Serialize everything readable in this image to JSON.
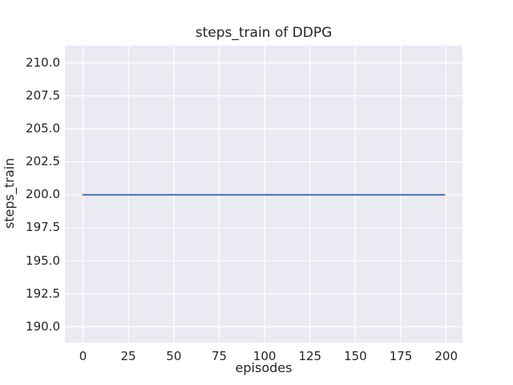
{
  "chart_data": {
    "type": "line",
    "title": "steps_train of DDPG",
    "xlabel": "episodes",
    "ylabel": "steps_train",
    "x_ticks": {
      "values": [
        0,
        25,
        50,
        75,
        100,
        125,
        150,
        175,
        200
      ],
      "labels": [
        "0",
        "25",
        "50",
        "75",
        "100",
        "125",
        "150",
        "175",
        "200"
      ]
    },
    "y_ticks": {
      "values": [
        190.0,
        192.5,
        195.0,
        197.5,
        200.0,
        202.5,
        205.0,
        207.5,
        210.0
      ],
      "labels": [
        "190.0",
        "192.5",
        "195.0",
        "197.5",
        "200.0",
        "202.5",
        "205.0",
        "207.5",
        "210.0"
      ]
    },
    "xlim": [
      -9.95,
      208.95
    ],
    "ylim": [
      188.8,
      211.3
    ],
    "grid": true,
    "legend_position": "none",
    "colors": {
      "figure_background": "#ffffff",
      "plot_background": "#eaeaf2",
      "grid": "#ffffff",
      "text": "#262626"
    },
    "series": [
      {
        "name": "steps_train",
        "color": "#4c72b0",
        "line_width": 2,
        "points": [
          [
            0,
            200
          ],
          [
            199,
            200
          ]
        ]
      }
    ]
  }
}
